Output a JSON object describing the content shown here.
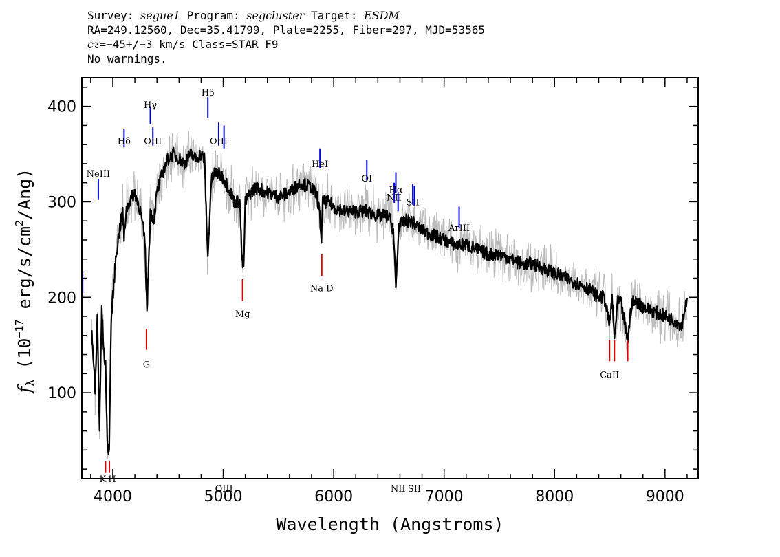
{
  "header": {
    "line1": {
      "survey_label": "Survey: ",
      "survey": "segue1",
      "program_label": " Program: ",
      "program": "segcluster",
      "target_label": " Target: ",
      "target": "ESDM"
    },
    "line2": "RA=249.12560, Dec=35.41799, Plate=2255, Fiber=297, MJD=53565",
    "line3": {
      "cz_prefix": "cz",
      "cz_mid": "=−45+/−3",
      "cz_rest": " km/s Class=STAR F9"
    },
    "line4": "No warnings."
  },
  "chart_data": {
    "type": "line",
    "title": "",
    "xlabel": "Wavelength (Angstroms)",
    "ylabel": "f_λ (10^-17 erg/s/cm^2/Ang)",
    "xlim": [
      3720,
      9300
    ],
    "ylim": [
      10,
      430
    ],
    "x_ticks": [
      4000,
      5000,
      6000,
      7000,
      8000,
      9000
    ],
    "y_ticks": [
      100,
      200,
      300,
      400
    ],
    "grid": false,
    "colors": {
      "flux": "#000000",
      "noise": "#bbbbbb",
      "emission": "#0000cc",
      "absorption": "#dd0000"
    },
    "series": [
      {
        "x": [
          3810,
          3840,
          3860,
          3880,
          3900,
          3920,
          3935,
          3950,
          3968,
          3985,
          4000,
          4030,
          4060,
          4090,
          4102,
          4120,
          4150,
          4200,
          4250,
          4290,
          4310,
          4340,
          4370,
          4400,
          4450,
          4500,
          4550,
          4600,
          4650,
          4700,
          4750,
          4800,
          4830,
          4861,
          4890,
          4920,
          4950,
          5000,
          5050,
          5100,
          5150,
          5170,
          5185,
          5200,
          5250,
          5300,
          5400,
          5500,
          5600,
          5700,
          5800,
          5850,
          5870,
          5890,
          5900,
          5950,
          6000,
          6100,
          6200,
          6300,
          6400,
          6500,
          6540,
          6563,
          6590,
          6650,
          6700,
          6800,
          6900,
          7000,
          7100,
          7200,
          7300,
          7400,
          7500,
          7600,
          7700,
          7800,
          7900,
          8000,
          8100,
          8200,
          8300,
          8400,
          8450,
          8498,
          8520,
          8542,
          8570,
          8600,
          8662,
          8700,
          8750,
          8800,
          8900,
          9000,
          9100,
          9150,
          9200
        ],
        "y": [
          165,
          100,
          180,
          60,
          190,
          140,
          130,
          45,
          40,
          175,
          200,
          245,
          270,
          290,
          260,
          290,
          300,
          310,
          290,
          260,
          185,
          290,
          280,
          310,
          330,
          345,
          350,
          345,
          340,
          350,
          345,
          350,
          345,
          240,
          320,
          330,
          330,
          325,
          315,
          300,
          300,
          240,
          230,
          300,
          310,
          315,
          310,
          305,
          310,
          320,
          315,
          305,
          290,
          260,
          300,
          300,
          295,
          290,
          290,
          290,
          285,
          285,
          270,
          210,
          275,
          280,
          280,
          270,
          265,
          260,
          255,
          255,
          250,
          245,
          245,
          240,
          235,
          235,
          230,
          225,
          220,
          215,
          210,
          200,
          200,
          170,
          200,
          155,
          195,
          195,
          155,
          195,
          195,
          190,
          185,
          180,
          175,
          170,
          200
        ]
      }
    ],
    "line_markers": [
      {
        "label": "NeIII",
        "x": 3869,
        "kind": "emission",
        "y_top": 324,
        "y_bot": 302,
        "label_y": 330
      },
      {
        "label": "Hδ",
        "x": 4102,
        "kind": "emission",
        "y_top": 376,
        "y_bot": 357,
        "label_y": 364
      },
      {
        "label": "Hγ",
        "x": 4340,
        "kind": "emission",
        "y_top": 400,
        "y_bot": 381,
        "label_y": 402
      },
      {
        "label": "OIII",
        "x": 4363,
        "kind": "emission",
        "y_top": 378,
        "y_bot": 359,
        "label_y": 364
      },
      {
        "label": "Hβ",
        "x": 4861,
        "kind": "emission",
        "y_top": 410,
        "y_bot": 388,
        "label_y": 415
      },
      {
        "label": "OIII",
        "x": 4959,
        "kind": "emission",
        "y_top": 383,
        "y_bot": 359,
        "label_y": 364
      },
      {
        "label": "OIII",
        "x": 5007,
        "kind": "emission",
        "y_top": 380,
        "y_bot": 356,
        "label_y": 0
      },
      {
        "label": "HeI",
        "x": 5876,
        "kind": "emission",
        "y_top": 356,
        "y_bot": 335,
        "label_y": 340
      },
      {
        "label": "OI",
        "x": 6300,
        "kind": "emission",
        "y_top": 344,
        "y_bot": 322,
        "label_y": 325
      },
      {
        "label": "NII",
        "x": 6548,
        "kind": "emission",
        "y_top": 320,
        "y_bot": 299,
        "label_y": 305
      },
      {
        "label": "Hα",
        "x": 6563,
        "kind": "emission",
        "y_top": 331,
        "y_bot": 309,
        "label_y": 313
      },
      {
        "label": "NII",
        "x": 6583,
        "kind": "emission",
        "y_top": 310,
        "y_bot": 290,
        "label_y": 0
      },
      {
        "label": "SII",
        "x": 6716,
        "kind": "emission",
        "y_top": 319,
        "y_bot": 297,
        "label_y": 300
      },
      {
        "label": "SII",
        "x": 6731,
        "kind": "emission",
        "y_top": 317,
        "y_bot": 296,
        "label_y": 0
      },
      {
        "label": "ArIII",
        "x": 7136,
        "kind": "emission",
        "y_top": 295,
        "y_bot": 272,
        "label_y": 273
      },
      {
        "label": "",
        "x": 3727,
        "kind": "emission",
        "y_top": 226,
        "y_bot": 203,
        "label_y": 0
      },
      {
        "label": "K",
        "x": 3934,
        "kind": "absorption",
        "y_top": 28,
        "y_bot": 16,
        "label_y": 10
      },
      {
        "label": "H",
        "x": 3969,
        "kind": "absorption",
        "y_top": 28,
        "y_bot": 16,
        "label_y": 10
      },
      {
        "label": "G",
        "x": 4305,
        "kind": "absorption",
        "y_top": 167,
        "y_bot": 145,
        "label_y": 130
      },
      {
        "label": "Mg",
        "x": 5175,
        "kind": "absorption",
        "y_top": 219,
        "y_bot": 196,
        "label_y": 183
      },
      {
        "label": "Na D",
        "x": 5892,
        "kind": "absorption",
        "y_top": 245,
        "y_bot": 222,
        "label_y": 210
      },
      {
        "label": "CaII",
        "x": 8498,
        "kind": "absorption",
        "y_top": 155,
        "y_bot": 133,
        "label_y": 119
      },
      {
        "label": "",
        "x": 8542,
        "kind": "absorption",
        "y_top": 155,
        "y_bot": 133,
        "label_y": 0
      },
      {
        "label": "",
        "x": 8662,
        "kind": "absorption",
        "y_top": 155,
        "y_bot": 133,
        "label_y": 0
      }
    ]
  }
}
